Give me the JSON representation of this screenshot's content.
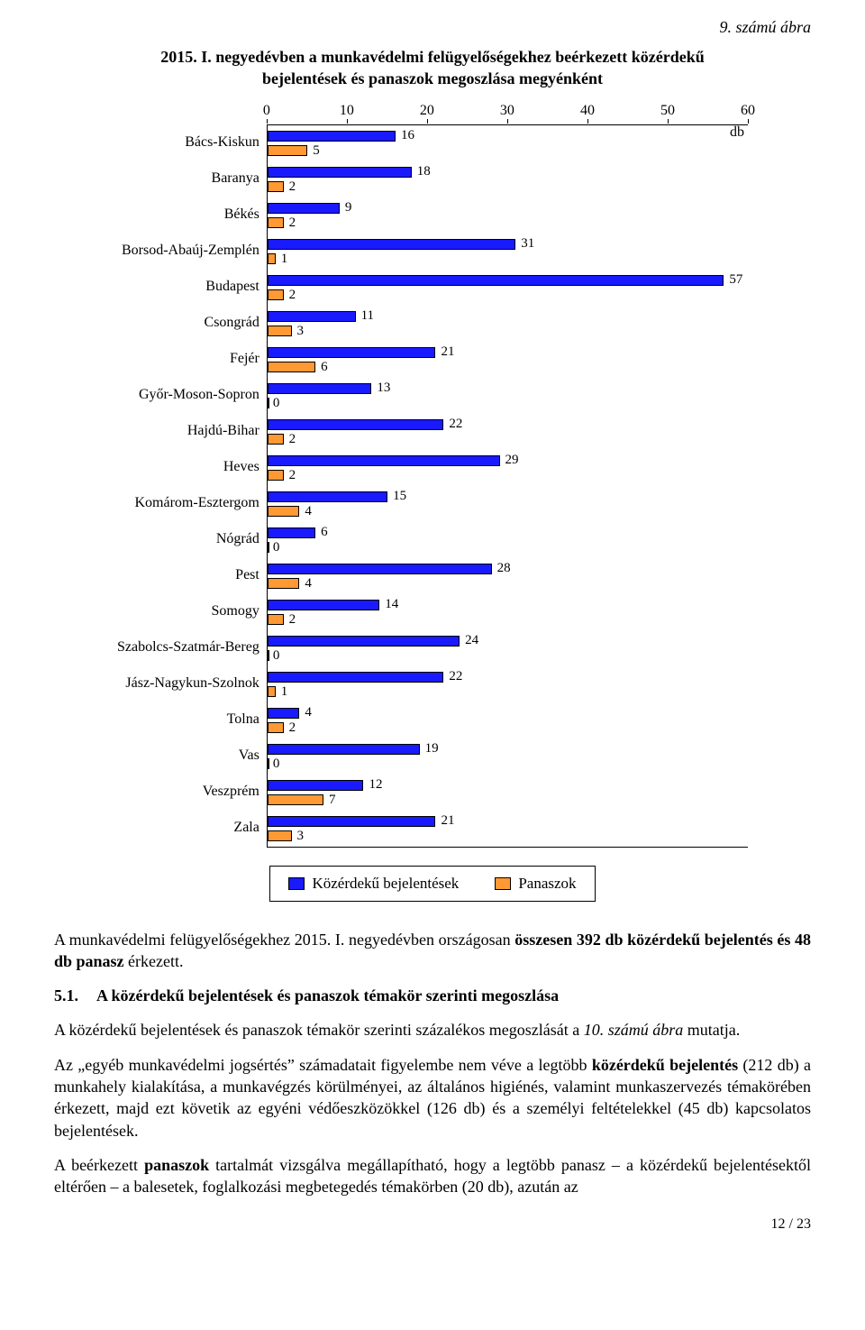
{
  "figure_label": "9. számú ábra",
  "chart": {
    "type": "bar",
    "title": "2015. I. negyedévben a munkavédelmi felügyelőségekhez beérkezett közérdekű bejelentések és panaszok megoszlása megyénként",
    "x_axis": {
      "min": 0,
      "max": 60,
      "step": 10
    },
    "unit_label": "db",
    "series_a": {
      "label": "Közérdekű bejelentések",
      "color": "#1a1aff",
      "border": "#000000"
    },
    "series_b": {
      "label": "Panaszok",
      "color": "#ff9933",
      "border": "#000000"
    },
    "categories": [
      {
        "label": "Bács-Kiskun",
        "a": 16,
        "b": 5
      },
      {
        "label": "Baranya",
        "a": 18,
        "b": 2
      },
      {
        "label": "Békés",
        "a": 9,
        "b": 2
      },
      {
        "label": "Borsod-Abaúj-Zemplén",
        "a": 31,
        "b": 1
      },
      {
        "label": "Budapest",
        "a": 57,
        "b": 2
      },
      {
        "label": "Csongrád",
        "a": 11,
        "b": 3
      },
      {
        "label": "Fejér",
        "a": 21,
        "b": 6
      },
      {
        "label": "Győr-Moson-Sopron",
        "a": 13,
        "b": 0
      },
      {
        "label": "Hajdú-Bihar",
        "a": 22,
        "b": 2
      },
      {
        "label": "Heves",
        "a": 29,
        "b": 2
      },
      {
        "label": "Komárom-Esztergom",
        "a": 15,
        "b": 4
      },
      {
        "label": "Nógrád",
        "a": 6,
        "b": 0
      },
      {
        "label": "Pest",
        "a": 28,
        "b": 4
      },
      {
        "label": "Somogy",
        "a": 14,
        "b": 2
      },
      {
        "label": "Szabolcs-Szatmár-Bereg",
        "a": 24,
        "b": 0
      },
      {
        "label": "Jász-Nagykun-Szolnok",
        "a": 22,
        "b": 1
      },
      {
        "label": "Tolna",
        "a": 4,
        "b": 2
      },
      {
        "label": "Vas",
        "a": 19,
        "b": 0
      },
      {
        "label": "Veszprém",
        "a": 12,
        "b": 7
      },
      {
        "label": "Zala",
        "a": 21,
        "b": 3
      }
    ]
  },
  "paragraphs": {
    "p1_a": "A munkavédelmi felügyelőségekhez 2015. I. negyedévben országosan ",
    "p1_b": "összesen 392 db közérdekű bejelentés és 48 db panasz",
    "p1_c": " érkezett.",
    "sec_num": "5.1.",
    "sec_title": "A közérdekű bejelentések és panaszok témakör szerinti megoszlása",
    "p2_a": "A közérdekű bejelentések és panaszok témakör szerinti százalékos megoszlását a ",
    "p2_b": "10. számú ábra",
    "p2_c": " mutatja.",
    "p3_a": "Az „egyéb munkavédelmi jogsértés” számadatait figyelembe nem véve a legtöbb ",
    "p3_b": "közérdekű bejelentés",
    "p3_c": " (212 db) a munkahely kialakítása, a munkavégzés körülményei, az általános higiénés, valamint munkaszervezés témakörében érkezett, majd ezt követik az egyéni védőeszközökkel (126 db) és a személyi feltételekkel (45 db) kapcsolatos bejelentések.",
    "p4_a": "A beérkezett ",
    "p4_b": "panaszok",
    "p4_c": " tartalmát vizsgálva megállapítható, hogy a legtöbb panasz – a közérdekű bejelentésektől eltérően – a balesetek, foglalkozási megbetegedés témakörben (20 db), azután az"
  },
  "page_num": "12 / 23"
}
